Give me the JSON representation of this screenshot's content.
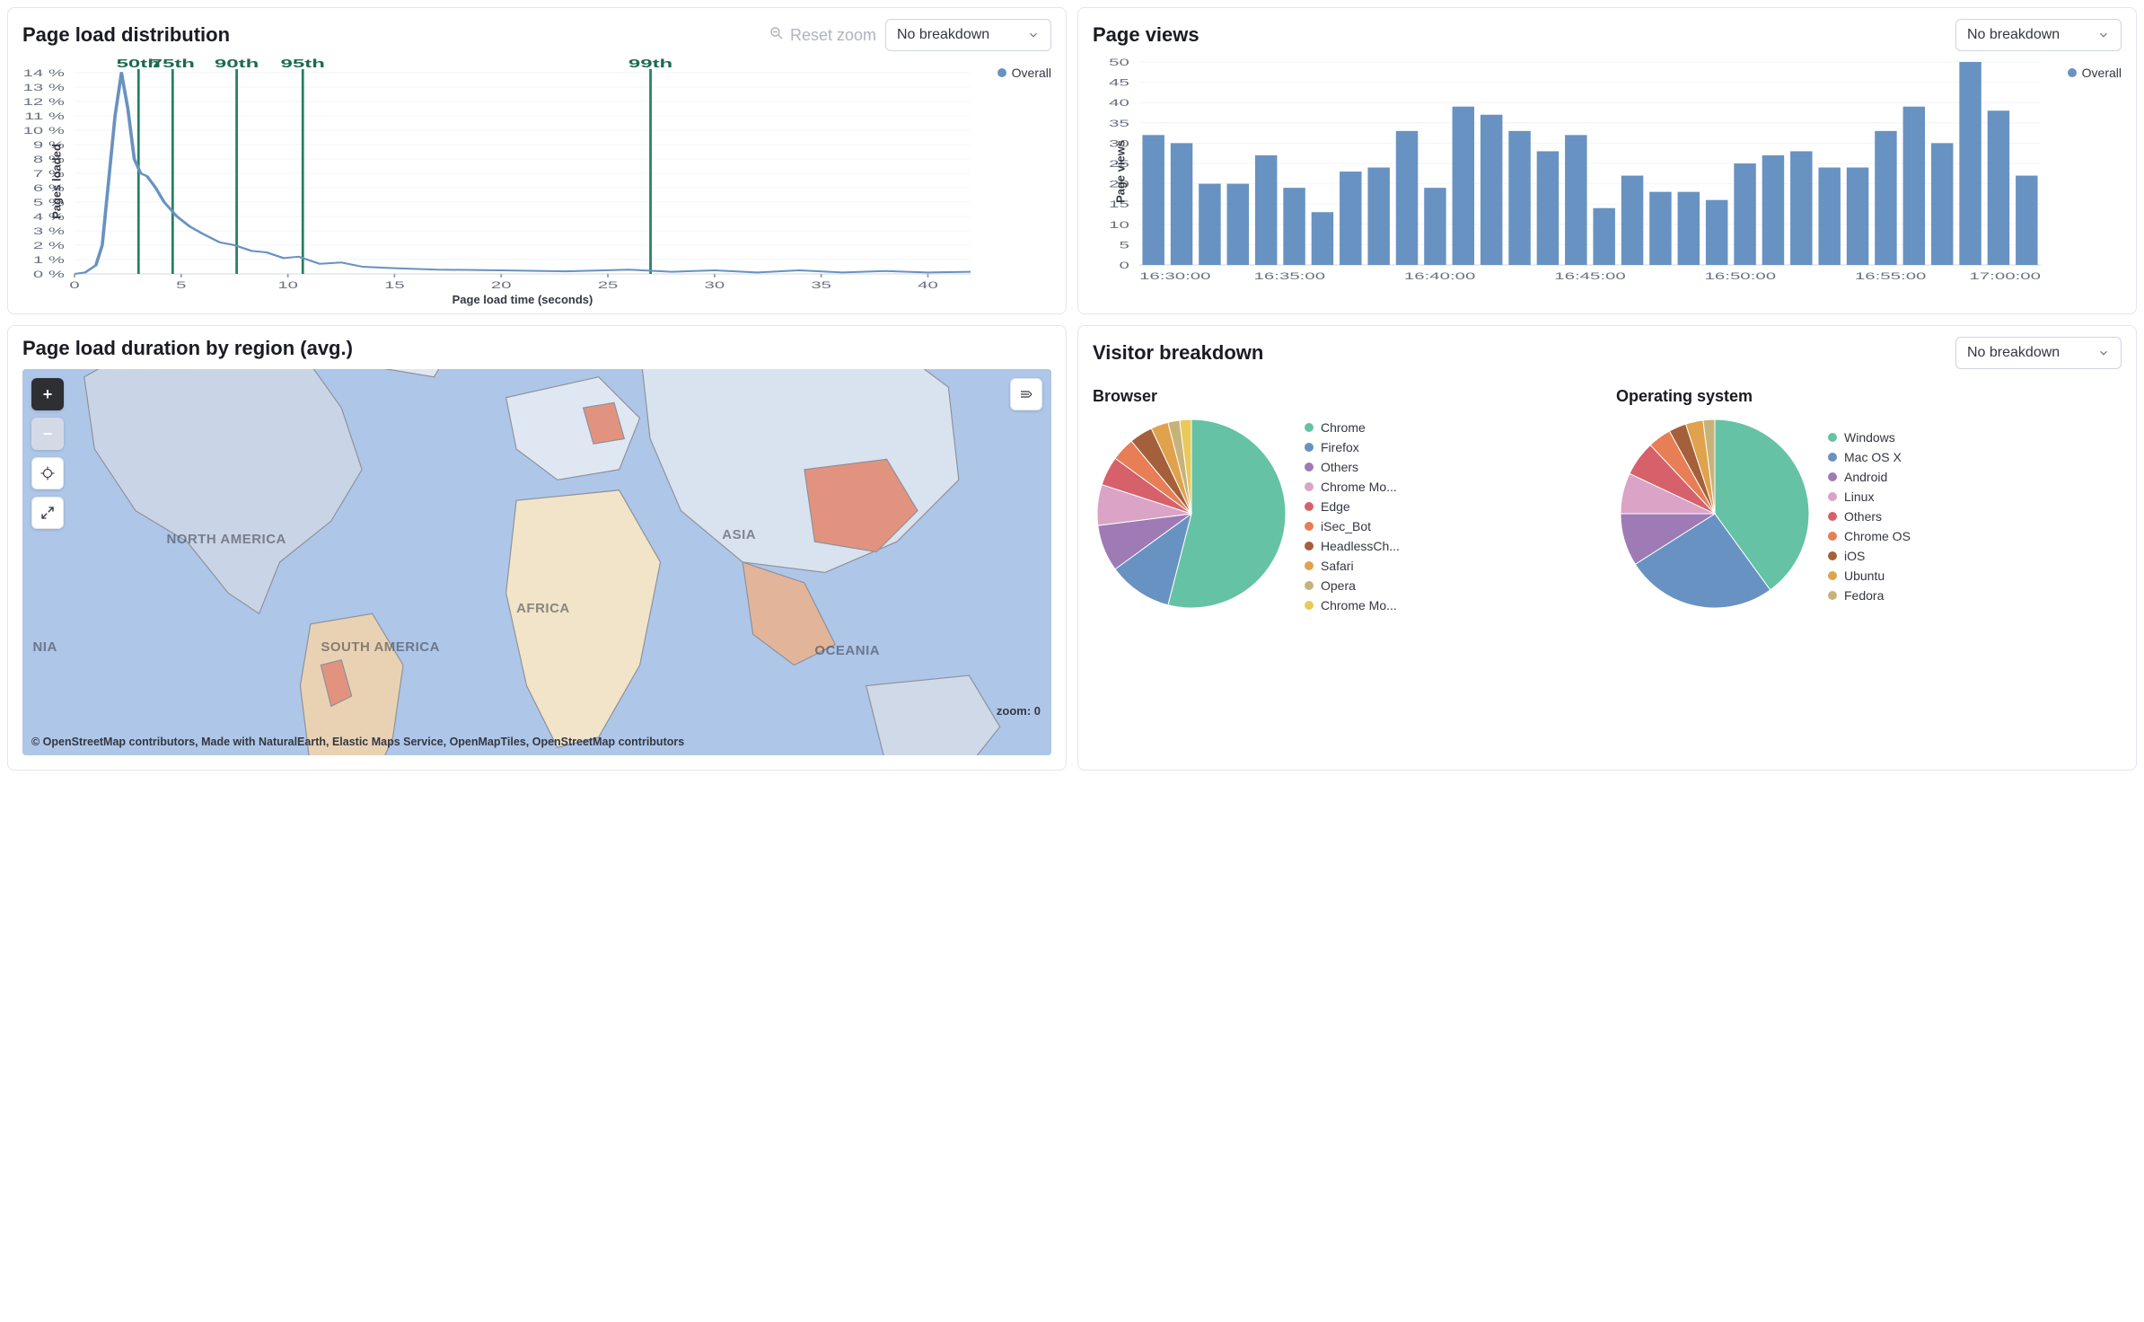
{
  "panels": {
    "page_load_dist": {
      "title": "Page load distribution",
      "reset_zoom_label": "Reset zoom",
      "select": {
        "value": "No breakdown"
      },
      "legend": {
        "color": "#6892c1",
        "label": "Overall"
      },
      "chart": {
        "type": "line",
        "x_axis_label": "Page load time (seconds)",
        "y_axis_label": "Pages loaded",
        "line_color": "#6892c1",
        "line_width": 2,
        "background": "#ffffff",
        "grid_color": "#f2f4fa",
        "xlim": [
          0,
          42
        ],
        "ylim": [
          0,
          14
        ],
        "xticks": [
          0,
          5,
          10,
          15,
          20,
          25,
          30,
          35,
          40
        ],
        "yticks": [
          0,
          1,
          2,
          3,
          4,
          5,
          6,
          7,
          8,
          9,
          10,
          11,
          12,
          13,
          14
        ],
        "ytick_suffix": " %",
        "percentile_lines": {
          "color": "#2a7f62",
          "label_color": "#1b6b52",
          "items": [
            {
              "label": "50th",
              "x": 3.0
            },
            {
              "label": "75th",
              "x": 4.6
            },
            {
              "label": "90th",
              "x": 7.6
            },
            {
              "label": "95th",
              "x": 10.7
            },
            {
              "label": "99th",
              "x": 27.0
            }
          ]
        },
        "series": [
          {
            "x": 0.0,
            "y": 0.0
          },
          {
            "x": 0.5,
            "y": 0.1
          },
          {
            "x": 1.0,
            "y": 0.6
          },
          {
            "x": 1.3,
            "y": 2.0
          },
          {
            "x": 1.6,
            "y": 6.5
          },
          {
            "x": 1.9,
            "y": 11.0
          },
          {
            "x": 2.2,
            "y": 14.0
          },
          {
            "x": 2.5,
            "y": 11.5
          },
          {
            "x": 2.8,
            "y": 8.0
          },
          {
            "x": 3.1,
            "y": 7.0
          },
          {
            "x": 3.4,
            "y": 6.8
          },
          {
            "x": 3.8,
            "y": 6.0
          },
          {
            "x": 4.2,
            "y": 5.0
          },
          {
            "x": 4.8,
            "y": 4.0
          },
          {
            "x": 5.4,
            "y": 3.3
          },
          {
            "x": 6.0,
            "y": 2.8
          },
          {
            "x": 6.8,
            "y": 2.2
          },
          {
            "x": 7.5,
            "y": 2.0
          },
          {
            "x": 8.3,
            "y": 1.6
          },
          {
            "x": 9.0,
            "y": 1.5
          },
          {
            "x": 9.8,
            "y": 1.1
          },
          {
            "x": 10.5,
            "y": 1.2
          },
          {
            "x": 11.5,
            "y": 0.7
          },
          {
            "x": 12.5,
            "y": 0.8
          },
          {
            "x": 13.5,
            "y": 0.5
          },
          {
            "x": 15.0,
            "y": 0.4
          },
          {
            "x": 17.0,
            "y": 0.3
          },
          {
            "x": 20.0,
            "y": 0.25
          },
          {
            "x": 23.0,
            "y": 0.18
          },
          {
            "x": 26.0,
            "y": 0.3
          },
          {
            "x": 28.0,
            "y": 0.15
          },
          {
            "x": 30.0,
            "y": 0.25
          },
          {
            "x": 32.0,
            "y": 0.1
          },
          {
            "x": 34.0,
            "y": 0.25
          },
          {
            "x": 36.0,
            "y": 0.1
          },
          {
            "x": 38.0,
            "y": 0.2
          },
          {
            "x": 40.0,
            "y": 0.1
          },
          {
            "x": 42.0,
            "y": 0.15
          }
        ]
      }
    },
    "page_views": {
      "title": "Page views",
      "select": {
        "value": "No breakdown"
      },
      "legend": {
        "color": "#6892c1",
        "label": "Overall"
      },
      "chart": {
        "type": "bar",
        "y_axis_label": "Page views",
        "bar_color": "#6892c1",
        "background": "#ffffff",
        "grid_color": "#f2f4fa",
        "ylim": [
          0,
          50
        ],
        "ytick_step": 5,
        "xticks": [
          "16:30:00",
          "16:35:00",
          "16:40:00",
          "16:45:00",
          "16:50:00",
          "16:55:00",
          "17:00:00"
        ],
        "bar_width_ratio": 0.78,
        "values": [
          32,
          30,
          20,
          20,
          27,
          19,
          13,
          23,
          24,
          33,
          19,
          39,
          37,
          33,
          28,
          32,
          14,
          22,
          18,
          18,
          16,
          25,
          27,
          28,
          24,
          24,
          33,
          39,
          30,
          50,
          38,
          22
        ]
      }
    },
    "region_map": {
      "title": "Page load duration by region (avg.)",
      "zoom_label": "zoom: 0",
      "attribution": "© OpenStreetMap contributors, Made with NaturalEarth, Elastic Maps Service, OpenMapTiles, OpenStreetMap contributors",
      "background_ocean": "#aec6e8",
      "land_default": "#fefcf5",
      "land_stroke": "#8c9099",
      "continent_label_color": "rgba(52,55,65,0.55)",
      "continents": [
        {
          "label": "NORTH AMERICA",
          "left_pct": 14,
          "top_pct": 42
        },
        {
          "label": "ASIA",
          "left_pct": 68,
          "top_pct": 41
        },
        {
          "label": "AFRICA",
          "left_pct": 48,
          "top_pct": 60
        },
        {
          "label": "SOUTH AMERICA",
          "left_pct": 29,
          "top_pct": 70
        },
        {
          "label": "OCEANIA",
          "left_pct": 77,
          "top_pct": 71
        },
        {
          "label": "NIA",
          "left_pct": 1,
          "top_pct": 70
        }
      ]
    },
    "visitor_breakdown": {
      "title": "Visitor breakdown",
      "select": {
        "value": "No breakdown"
      },
      "browser": {
        "subtitle": "Browser",
        "pie_radius": 105,
        "slices": [
          {
            "label": "Chrome",
            "value": 54,
            "color": "#66c2a4"
          },
          {
            "label": "Firefox",
            "value": 11,
            "color": "#6892c1"
          },
          {
            "label": "Others",
            "value": 8,
            "color": "#9e7bb5"
          },
          {
            "label": "Chrome Mo...",
            "value": 7,
            "color": "#dba3c6"
          },
          {
            "label": "Edge",
            "value": 5,
            "color": "#d6616b"
          },
          {
            "label": "iSec_Bot",
            "value": 4,
            "color": "#e77e55"
          },
          {
            "label": "HeadlessCh...",
            "value": 4,
            "color": "#a4603b"
          },
          {
            "label": "Safari",
            "value": 3,
            "color": "#e0a24c"
          },
          {
            "label": "Opera",
            "value": 2,
            "color": "#c7b37a"
          },
          {
            "label": "Chrome Mo...",
            "value": 2,
            "color": "#e8ca5a"
          }
        ]
      },
      "os": {
        "subtitle": "Operating system",
        "pie_radius": 105,
        "slices": [
          {
            "label": "Windows",
            "value": 40,
            "color": "#66c2a4"
          },
          {
            "label": "Mac OS X",
            "value": 26,
            "color": "#6892c1"
          },
          {
            "label": "Android",
            "value": 9,
            "color": "#9e7bb5"
          },
          {
            "label": "Linux",
            "value": 7,
            "color": "#dba3c6"
          },
          {
            "label": "Others",
            "value": 6,
            "color": "#d6616b"
          },
          {
            "label": "Chrome OS",
            "value": 4,
            "color": "#e77e55"
          },
          {
            "label": "iOS",
            "value": 3,
            "color": "#a4603b"
          },
          {
            "label": "Ubuntu",
            "value": 3,
            "color": "#e0a24c"
          },
          {
            "label": "Fedora",
            "value": 2,
            "color": "#c7b37a"
          }
        ]
      }
    }
  }
}
